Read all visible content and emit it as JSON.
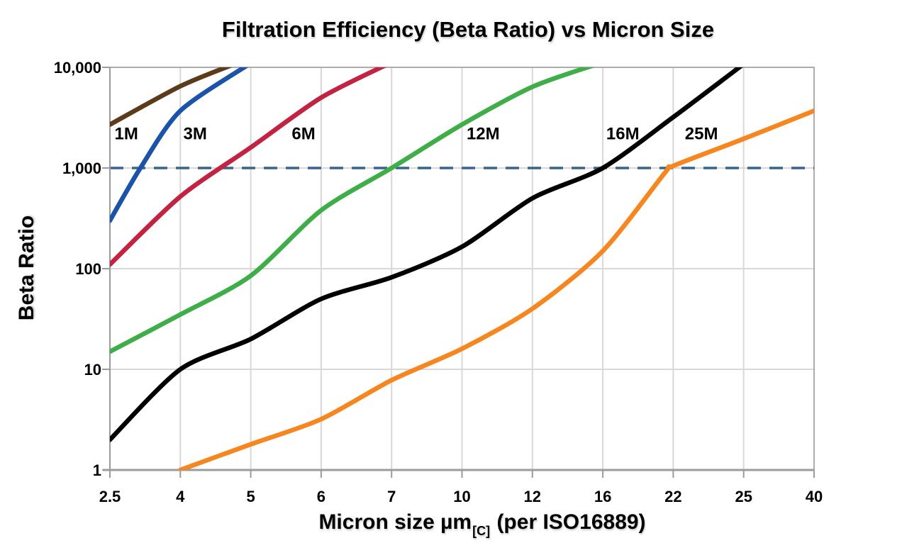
{
  "chart_data": {
    "type": "line",
    "title": "Filtration Efficiency (Beta Ratio) vs Micron Size",
    "x_axis": {
      "label_main": "Micron size µm",
      "label_sub": "[C]",
      "label_tail": " (per ISO16889)",
      "scale": "categorical-equal-spacing",
      "categories": [
        2.5,
        4,
        5,
        6,
        7,
        10,
        12,
        16,
        22,
        25,
        40
      ],
      "tick_labels": [
        "2.5",
        "4",
        "5",
        "6",
        "7",
        "10",
        "12",
        "16",
        "22",
        "25",
        "40"
      ]
    },
    "y_axis": {
      "label": "Beta Ratio",
      "scale": "log",
      "range": [
        1,
        10000
      ],
      "tick_values": [
        1,
        10,
        100,
        1000,
        10000
      ],
      "tick_labels": [
        "1",
        "10",
        "100",
        "1,000",
        "10,000"
      ]
    },
    "reference_line": {
      "beta": 1000,
      "style": "dashed",
      "color": "#36648F"
    },
    "grid": true,
    "legend": "inline-curve-labels",
    "series": [
      {
        "name": "1M",
        "color": "#5C3B1B",
        "label_pos": {
          "micron": 2.85,
          "beta": 2200
        },
        "points": [
          [
            2.5,
            2700
          ],
          [
            4,
            6500
          ],
          [
            4.77,
            10800
          ]
        ]
      },
      {
        "name": "3M",
        "color": "#1A53A9",
        "label_pos": {
          "micron": 4.21,
          "beta": 2200
        },
        "points": [
          [
            2.5,
            300
          ],
          [
            3.15,
            1000
          ],
          [
            4,
            3700
          ],
          [
            4.98,
            10800
          ]
        ]
      },
      {
        "name": "6M",
        "color": "#C22342",
        "label_pos": {
          "micron": 5.75,
          "beta": 2200
        },
        "points": [
          [
            2.5,
            110
          ],
          [
            4,
            520
          ],
          [
            5,
            1600
          ],
          [
            6,
            5000
          ],
          [
            6.95,
            10800
          ]
        ]
      },
      {
        "name": "12M",
        "color": "#3FAE49",
        "label_pos": {
          "micron": 10.6,
          "beta": 2200
        },
        "points": [
          [
            2.5,
            15
          ],
          [
            4,
            35
          ],
          [
            5,
            85
          ],
          [
            6,
            380
          ],
          [
            7,
            1000
          ],
          [
            10,
            2700
          ],
          [
            12,
            6400
          ],
          [
            15.7,
            10800
          ]
        ]
      },
      {
        "name": "16M",
        "color": "#010101",
        "label_pos": {
          "micron": 17.7,
          "beta": 2200
        },
        "points": [
          [
            2.5,
            2
          ],
          [
            4,
            10
          ],
          [
            5,
            20
          ],
          [
            6,
            50
          ],
          [
            7,
            82
          ],
          [
            10,
            165
          ],
          [
            12,
            500
          ],
          [
            16,
            1000
          ],
          [
            22,
            3200
          ],
          [
            25,
            10800
          ]
        ]
      },
      {
        "name": "25M",
        "color": "#F68620",
        "label_pos": {
          "micron": 23.2,
          "beta": 2200
        },
        "points": [
          [
            4,
            1
          ],
          [
            5,
            1.8
          ],
          [
            6,
            3.2
          ],
          [
            7,
            7.8
          ],
          [
            10,
            16
          ],
          [
            12,
            40
          ],
          [
            16,
            150
          ],
          [
            21.3,
            900
          ],
          [
            22,
            1050
          ],
          [
            25,
            1950
          ],
          [
            40,
            3700
          ]
        ]
      }
    ]
  },
  "colors": {
    "background": "#FFFFFF",
    "grid": "#D8D8D8",
    "frame": "#ACACAC",
    "axis": "#9B9B9B",
    "text": "#000000"
  }
}
